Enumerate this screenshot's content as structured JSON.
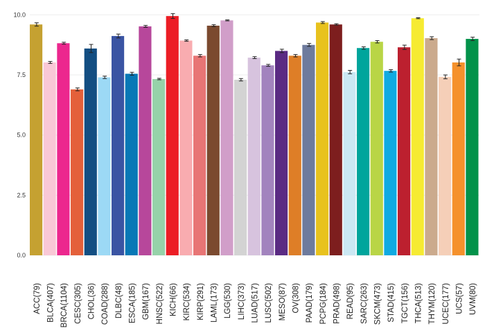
{
  "chart_data": {
    "type": "bar",
    "title": "",
    "xlabel": "",
    "ylabel": "",
    "ylim": [
      0,
      10.3
    ],
    "yticks": [
      0.0,
      2.5,
      5.0,
      7.5,
      10.0
    ],
    "ytick_labels": [
      "0.0",
      "2.5",
      "5.0",
      "7.5",
      "10.0"
    ],
    "grid": true,
    "categories": [
      "ACC(79)",
      "BLCA(407)",
      "BRCA(1104)",
      "CESC(305)",
      "CHOL(36)",
      "COAD(288)",
      "DLBC(48)",
      "ESCA(185)",
      "GBM(167)",
      "HNSC(522)",
      "KICH(66)",
      "KIRC(534)",
      "KIRP(291)",
      "LAML(173)",
      "LGG(530)",
      "LIHC(373)",
      "LUAD(517)",
      "LUSC(502)",
      "MESO(87)",
      "OV(308)",
      "PAAD(179)",
      "PCPG(184)",
      "PRAD(498)",
      "READ(95)",
      "SARC(263)",
      "SKCM(473)",
      "STAD(415)",
      "TGCT(156)",
      "THCA(513)",
      "THYM(120)",
      "UCEC(177)",
      "UCS(57)",
      "UVM(80)"
    ],
    "values": [
      9.6,
      8.02,
      8.82,
      6.9,
      8.6,
      7.4,
      9.12,
      7.55,
      9.52,
      7.33,
      9.95,
      8.93,
      8.3,
      9.55,
      9.77,
      7.3,
      8.22,
      7.9,
      8.5,
      8.3,
      8.75,
      9.68,
      9.6,
      7.62,
      8.62,
      8.88,
      7.67,
      8.65,
      9.86,
      9.03,
      7.42,
      8.02,
      9.0
    ],
    "errors": [
      0.07,
      0.04,
      0.04,
      0.06,
      0.17,
      0.05,
      0.08,
      0.06,
      0.04,
      0.03,
      0.1,
      0.03,
      0.05,
      0.04,
      0.02,
      0.05,
      0.04,
      0.04,
      0.07,
      0.05,
      0.06,
      0.04,
      0.03,
      0.07,
      0.05,
      0.05,
      0.05,
      0.09,
      0.02,
      0.06,
      0.08,
      0.14,
      0.07
    ],
    "colors": [
      "#C5A131",
      "#F9C8D6",
      "#EC278E",
      "#E4603A",
      "#134E82",
      "#9CD9F5",
      "#3A54A3",
      "#0878B6",
      "#B7479B",
      "#96D2A9",
      "#EC1D25",
      "#F9ACB0",
      "#E87575",
      "#7B4A2F",
      "#D19EC9",
      "#D3D3D3",
      "#D7C3DE",
      "#A283BE",
      "#5A2A83",
      "#DE7E27",
      "#6E7B9D",
      "#E8C21E",
      "#7D1E1E",
      "#CBE8F3",
      "#00A59C",
      "#B9D546",
      "#10AAE1",
      "#BC202F",
      "#F6EB32",
      "#CBAA8D",
      "#F5CFB8",
      "#F5912C",
      "#03924A"
    ]
  }
}
